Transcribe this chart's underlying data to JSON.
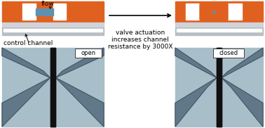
{
  "fig_width": 3.78,
  "fig_height": 1.82,
  "dpi": 100,
  "bg_color": "#ffffff",
  "arrow_text_line1": "valve actuation",
  "arrow_text_line2": "increases channel",
  "arrow_text_line3": "resistance by 3000X",
  "label_flow": "flow",
  "label_control": "control channel",
  "label_open": "open",
  "label_closed": "closed",
  "orange_color": "#E06020",
  "gray_color": "#B8BEC4",
  "gray_light": "#D0D4D8",
  "white_color": "#FFFFFF",
  "blue_color": "#6090B0",
  "black_color": "#000000",
  "micro_bg": "#A8BEC8",
  "micro_dk": "#607888",
  "micro_black": "#101010",
  "micro_line": "#405060"
}
